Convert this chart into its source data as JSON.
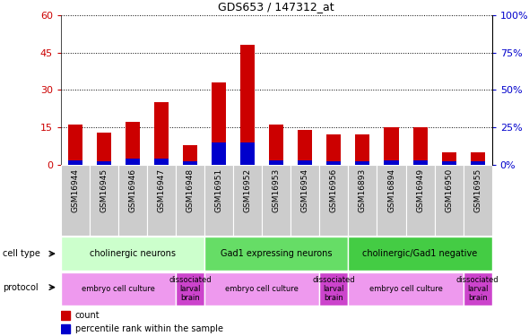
{
  "title": "GDS653 / 147312_at",
  "samples": [
    "GSM16944",
    "GSM16945",
    "GSM16946",
    "GSM16947",
    "GSM16948",
    "GSM16951",
    "GSM16952",
    "GSM16953",
    "GSM16954",
    "GSM16956",
    "GSM16893",
    "GSM16894",
    "GSM16949",
    "GSM16950",
    "GSM16955"
  ],
  "count_values": [
    16,
    13,
    17,
    25,
    8,
    33,
    48,
    16,
    14,
    12,
    12,
    15,
    15,
    5,
    5
  ],
  "percentile_values": [
    3,
    2,
    4,
    4,
    2,
    15,
    15,
    3,
    3,
    2,
    2,
    3,
    3,
    2,
    2
  ],
  "ylim_left": [
    0,
    60
  ],
  "ylim_right": [
    0,
    100
  ],
  "yticks_left": [
    0,
    15,
    30,
    45,
    60
  ],
  "yticks_right": [
    0,
    25,
    50,
    75,
    100
  ],
  "cell_type_groups": [
    {
      "label": "cholinergic neurons",
      "start": 0,
      "end": 5,
      "color": "#ccffcc"
    },
    {
      "label": "Gad1 expressing neurons",
      "start": 5,
      "end": 10,
      "color": "#66dd66"
    },
    {
      "label": "cholinergic/Gad1 negative",
      "start": 10,
      "end": 15,
      "color": "#44cc44"
    }
  ],
  "protocol_groups": [
    {
      "label": "embryo cell culture",
      "start": 0,
      "end": 4,
      "color": "#ee99ee"
    },
    {
      "label": "dissociated\nlarval\nbrain",
      "start": 4,
      "end": 5,
      "color": "#cc44cc"
    },
    {
      "label": "embryo cell culture",
      "start": 5,
      "end": 9,
      "color": "#ee99ee"
    },
    {
      "label": "dissociated\nlarval\nbrain",
      "start": 9,
      "end": 10,
      "color": "#cc44cc"
    },
    {
      "label": "embryo cell culture",
      "start": 10,
      "end": 14,
      "color": "#ee99ee"
    },
    {
      "label": "dissociated\nlarval\nbrain",
      "start": 14,
      "end": 15,
      "color": "#cc44cc"
    }
  ],
  "bar_color_count": "#cc0000",
  "bar_color_pct": "#0000cc",
  "tick_label_color_left": "#cc0000",
  "tick_label_color_right": "#0000cc",
  "sample_bg_color": "#cccccc",
  "cell_type_label_colors": [
    "#ccffcc",
    "#66dd66",
    "#44cc44"
  ]
}
